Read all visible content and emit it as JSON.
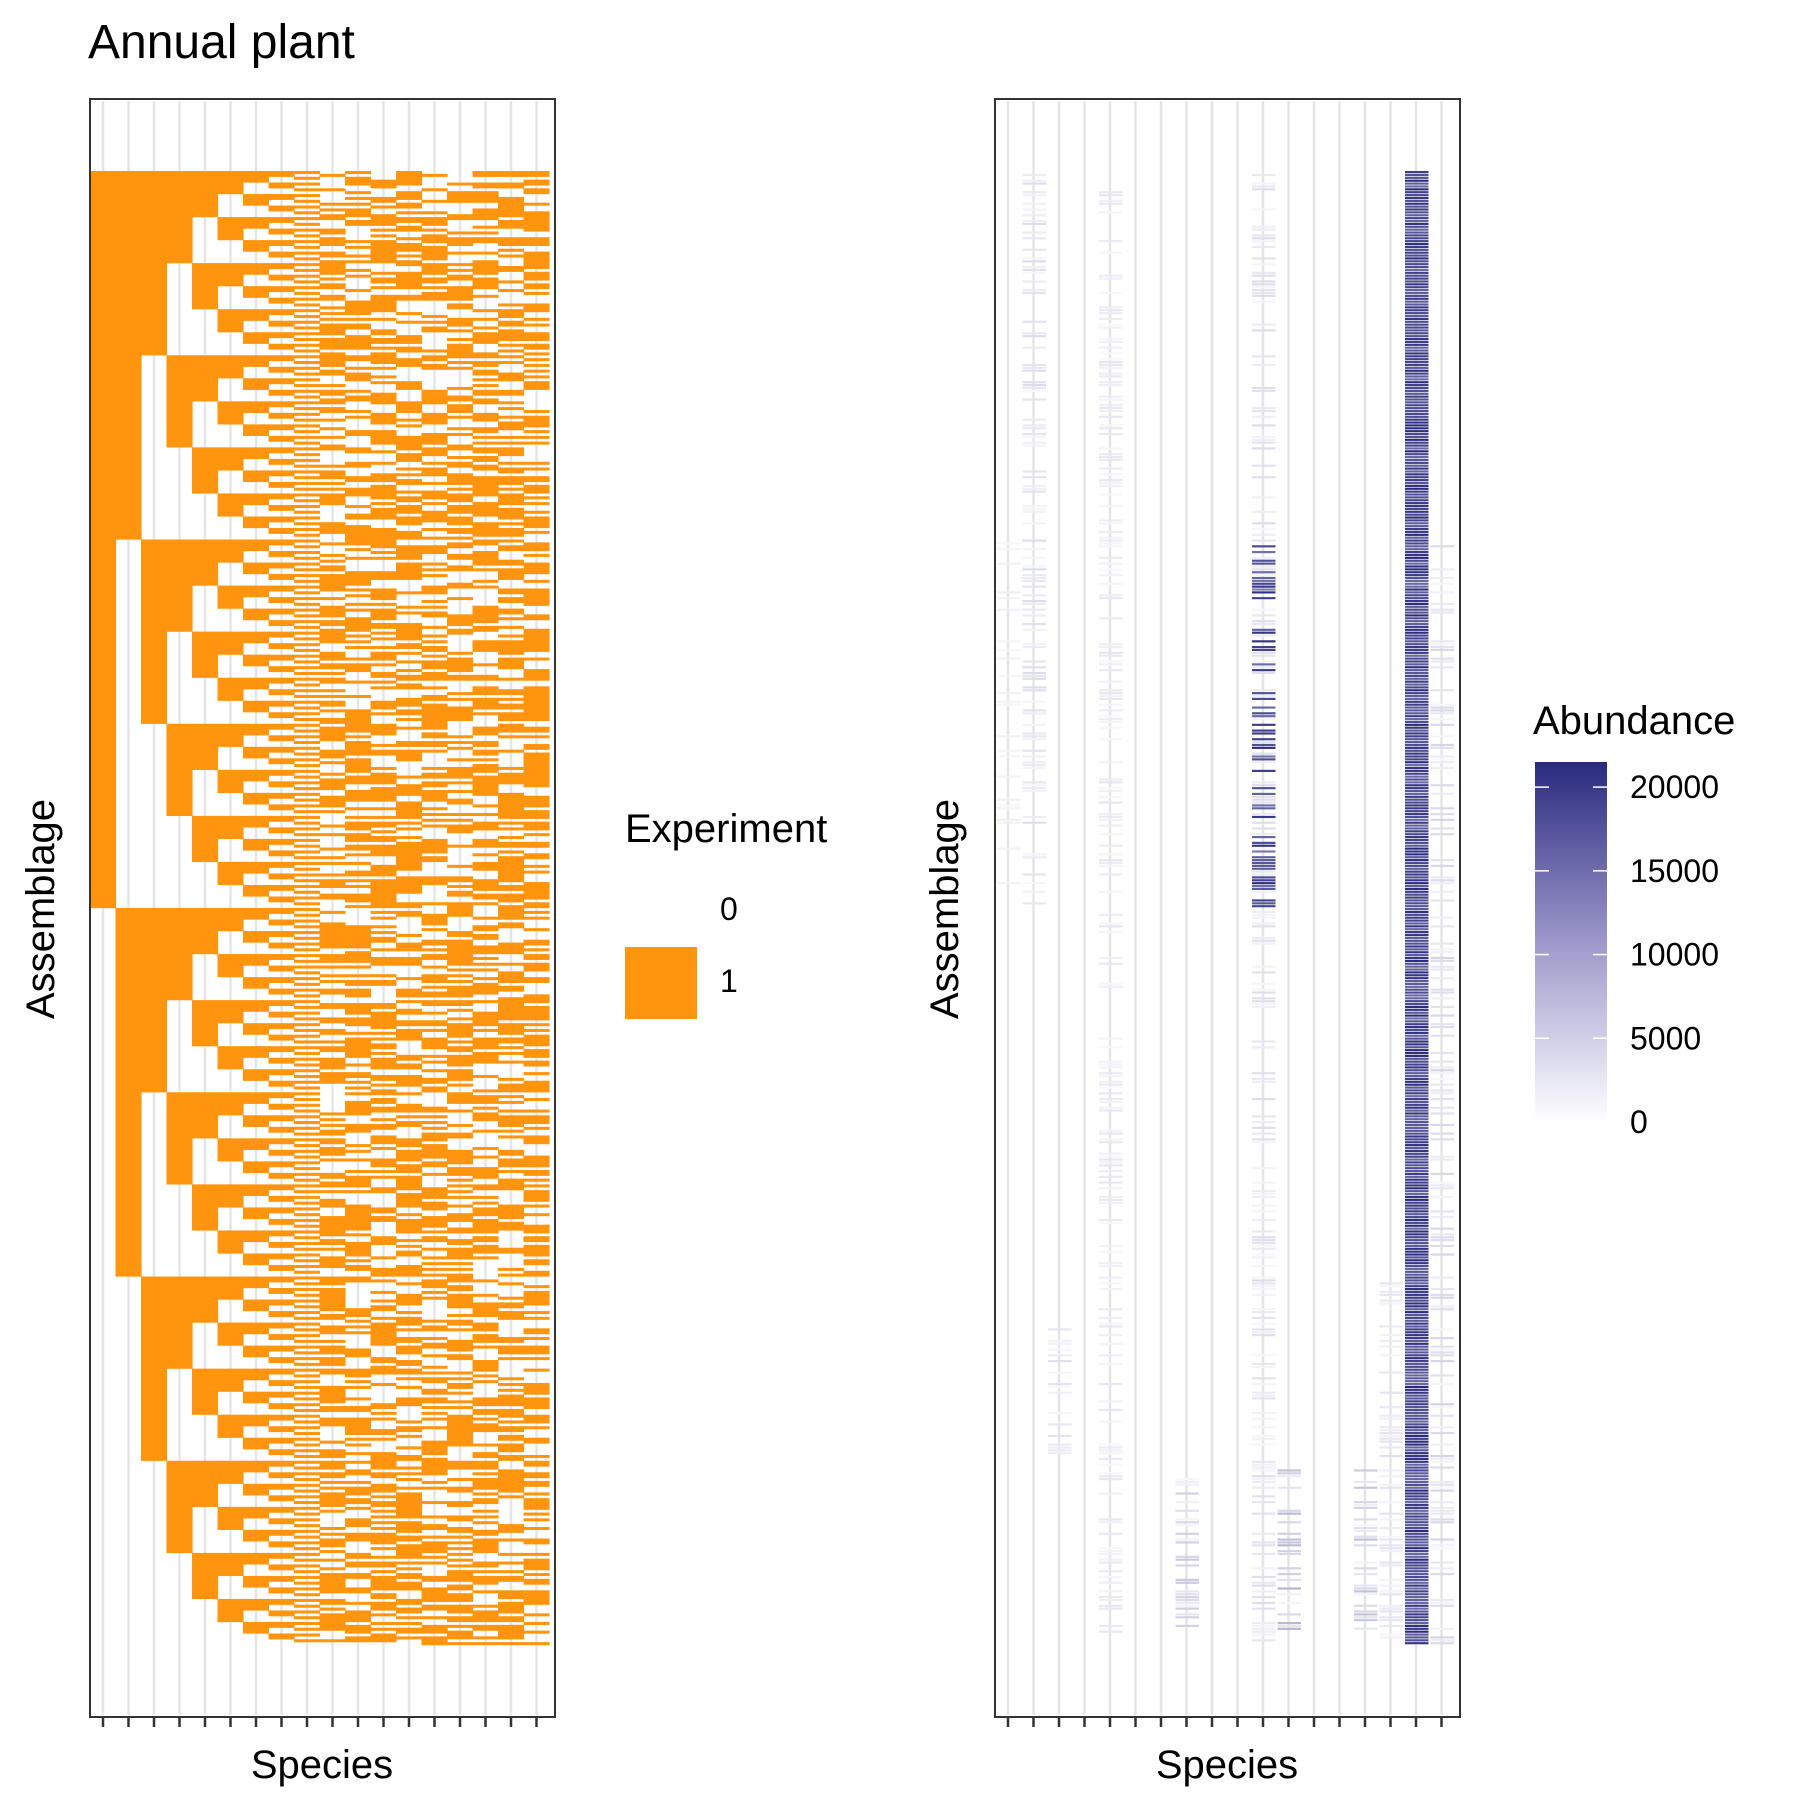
{
  "chart_data": [
    {
      "type": "heatmap",
      "title": "Annual plant",
      "xlabel": "Species",
      "ylabel": "Assemblage",
      "species_count": 18,
      "assemblage_count": 512,
      "cell_values": [
        0,
        1
      ],
      "pattern": "presence/absence of each species across all 2^9 combinations of the first 9 species (binary tree); remaining species randomly present",
      "fill_present": "#FF950E",
      "fill_absent": "#FFFFFF",
      "legend": {
        "title": "Experiment",
        "placement": "right",
        "entries": [
          {
            "label": "0",
            "color": "#FFFFFF"
          },
          {
            "label": "1",
            "color": "#FF950E"
          }
        ]
      }
    },
    {
      "type": "heatmap",
      "title": "",
      "xlabel": "Species",
      "ylabel": "Assemblage",
      "species_count": 18,
      "assemblage_count": 512,
      "value_range": [
        0,
        21500
      ],
      "dominant_species_index": 16,
      "colorscale": [
        "#FFFFFF",
        "#2A2A7E"
      ],
      "legend": {
        "title": "Abundance",
        "placement": "right",
        "type": "continuous",
        "ticks": [
          "0",
          "5000",
          "10000",
          "15000",
          "20000"
        ],
        "tick_values": [
          0,
          5000,
          10000,
          15000,
          20000
        ],
        "max": 21500,
        "color_low": "#FFFFFF",
        "color_high": "#2A2A7E"
      }
    }
  ]
}
